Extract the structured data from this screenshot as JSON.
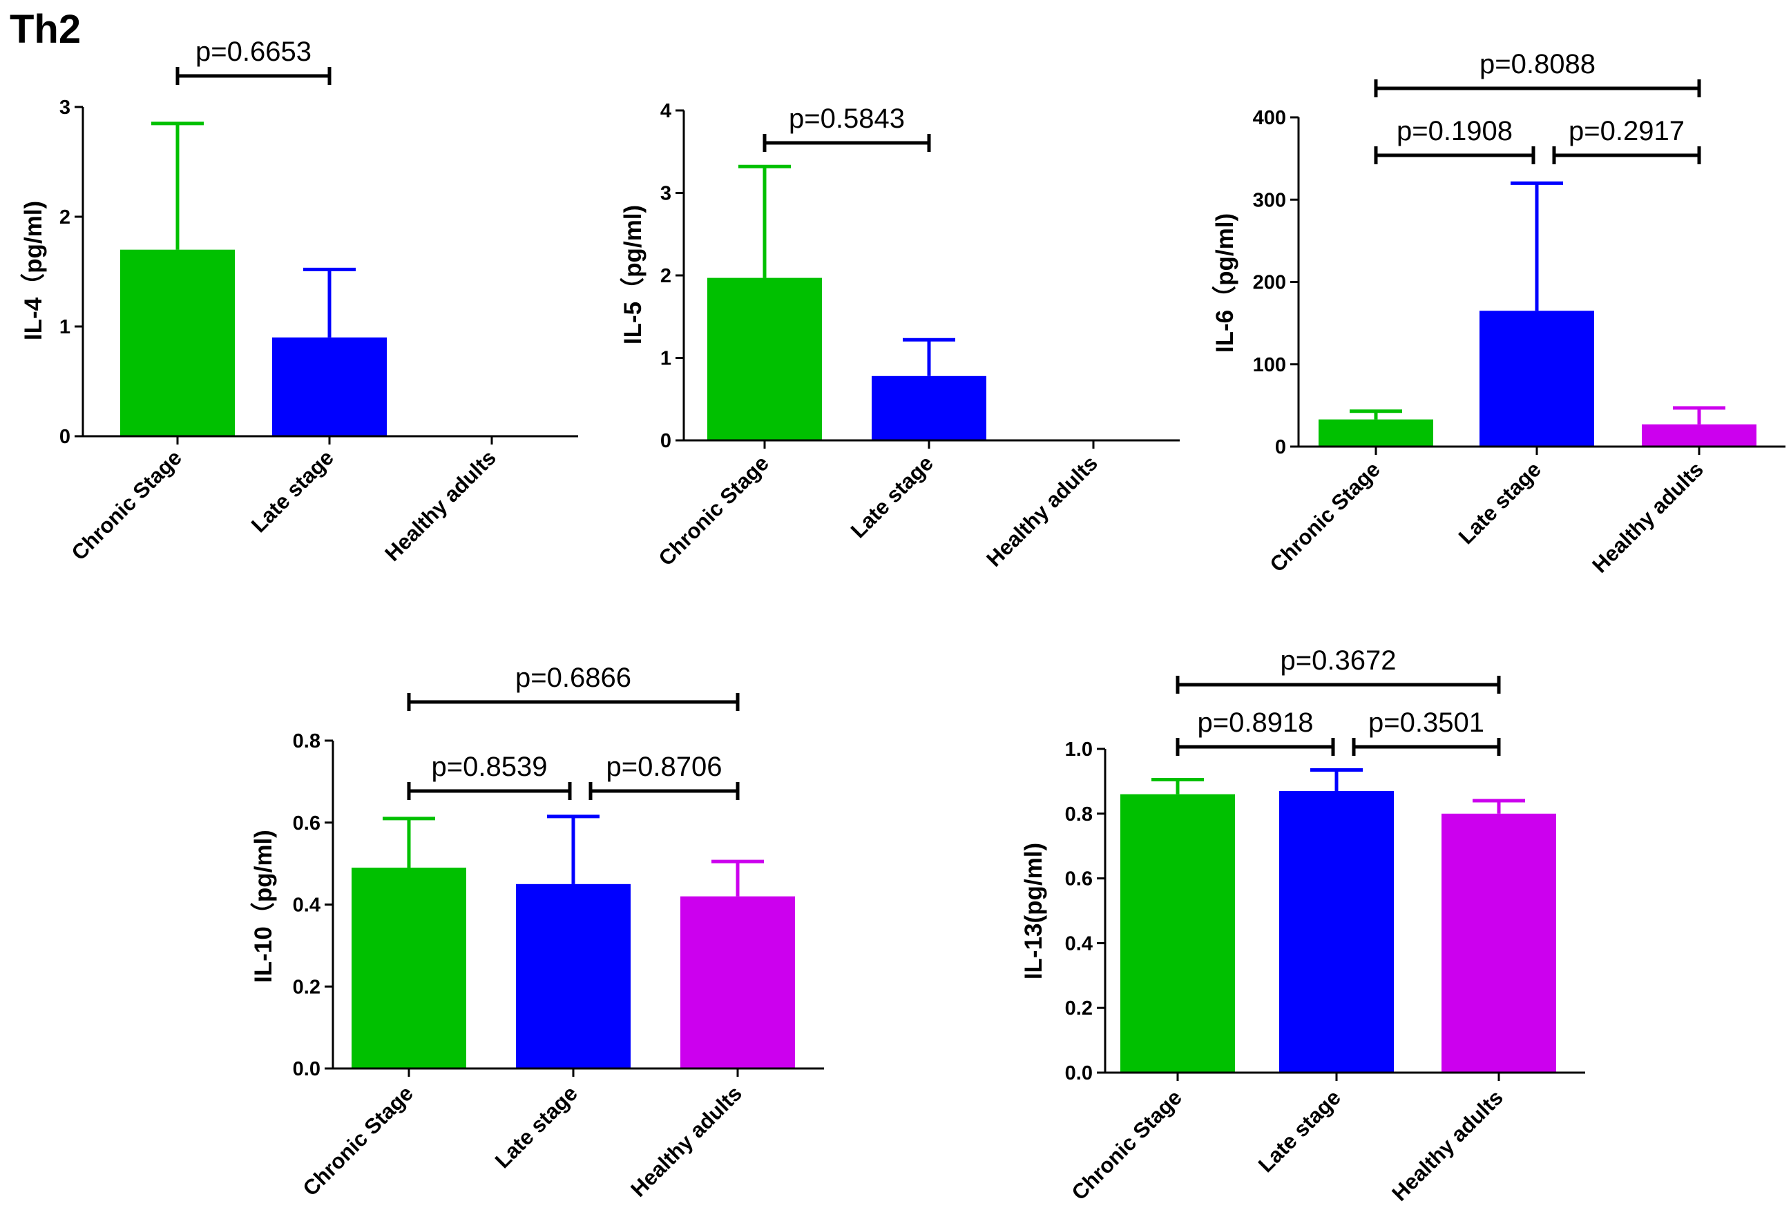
{
  "figure_title": "Th2",
  "colors": {
    "chronic": "#00C000",
    "late": "#0000FF",
    "healthy": "#CC00EE",
    "axis": "#000000"
  },
  "chart_data": [
    {
      "type": "bar",
      "id": "il4",
      "ylabel": "IL-4（pg/ml)",
      "categories": [
        "Chronic Stage",
        "Late stage",
        "Healthy adults"
      ],
      "values": [
        1.7,
        0.9,
        0
      ],
      "errors": [
        1.15,
        0.62,
        0
      ],
      "ylim": [
        0,
        3
      ],
      "yticks": [
        "0",
        "1",
        "2",
        "3"
      ],
      "comparisons": [
        {
          "from": 0,
          "to": 1,
          "label": "p=0.6653",
          "level": 1
        }
      ]
    },
    {
      "type": "bar",
      "id": "il5",
      "ylabel": "IL-5（pg/ml)",
      "categories": [
        "Chronic Stage",
        "Late stage",
        "Healthy adults"
      ],
      "values": [
        1.97,
        0.78,
        0
      ],
      "errors": [
        1.35,
        0.44,
        0
      ],
      "ylim": [
        0,
        4
      ],
      "yticks": [
        "0",
        "1",
        "2",
        "3",
        "4"
      ],
      "comparisons": [
        {
          "from": 0,
          "to": 1,
          "label": "p=0.5843",
          "level": 1
        }
      ]
    },
    {
      "type": "bar",
      "id": "il6",
      "ylabel": "IL-6（pg/ml)",
      "categories": [
        "Chronic Stage",
        "Late stage",
        "Healthy adults"
      ],
      "values": [
        33,
        165,
        27
      ],
      "errors": [
        10,
        155,
        20
      ],
      "ylim": [
        0,
        400
      ],
      "yticks": [
        "0",
        "100",
        "200",
        "300",
        "400"
      ],
      "comparisons": [
        {
          "from": 0,
          "to": 1,
          "label": "p=0.1908",
          "level": 1
        },
        {
          "from": 1,
          "to": 2,
          "label": "p=0.2917",
          "level": 1
        },
        {
          "from": 0,
          "to": 2,
          "label": "p=0.8088",
          "level": 2
        }
      ]
    },
    {
      "type": "bar",
      "id": "il10",
      "ylabel": "IL-10（pg/ml)",
      "categories": [
        "Chronic Stage",
        "Late stage",
        "Healthy adults"
      ],
      "values": [
        0.49,
        0.45,
        0.42
      ],
      "errors": [
        0.12,
        0.165,
        0.085
      ],
      "ylim": [
        0,
        0.8
      ],
      "yticks": [
        "0.0",
        "0.2",
        "0.4",
        "0.6",
        "0.8"
      ],
      "comparisons": [
        {
          "from": 0,
          "to": 1,
          "label": "p=0.8539",
          "level": 1
        },
        {
          "from": 1,
          "to": 2,
          "label": "p=0.8706",
          "level": 1
        },
        {
          "from": 0,
          "to": 2,
          "label": "p=0.6866",
          "level": 2
        }
      ]
    },
    {
      "type": "bar",
      "id": "il13",
      "ylabel": "IL-13(pg/ml)",
      "categories": [
        "Chronic Stage",
        "Late stage",
        "Healthy adults"
      ],
      "values": [
        0.86,
        0.87,
        0.8
      ],
      "errors": [
        0.045,
        0.065,
        0.04
      ],
      "ylim": [
        0,
        1.0
      ],
      "yticks": [
        "0.0",
        "0.2",
        "0.4",
        "0.6",
        "0.8",
        "1.0"
      ],
      "comparisons": [
        {
          "from": 0,
          "to": 1,
          "label": "p=0.8918",
          "level": 1
        },
        {
          "from": 1,
          "to": 2,
          "label": "p=0.3501",
          "level": 1
        },
        {
          "from": 0,
          "to": 2,
          "label": "p=0.3672",
          "level": 2
        }
      ]
    }
  ]
}
